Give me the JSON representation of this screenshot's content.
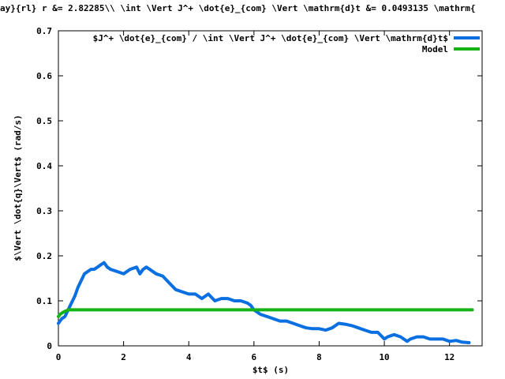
{
  "chart_data": {
    "type": "line",
    "title": "ay}{rl} r &= 2.82285\\\\ \\int \\Vert J^+ \\dot{e}_{com} \\Vert \\mathrm{d}t &=  0.0493135 \\mathrm{",
    "xlabel": "$t$ (s)",
    "ylabel": "$\\Vert \\dot{q}\\Vert$ (rad/s)",
    "xlim": [
      0,
      13
    ],
    "ylim": [
      0,
      0.7
    ],
    "x_ticks": [
      "0",
      "2",
      "4",
      "6",
      "8",
      "10",
      "12"
    ],
    "y_ticks": [
      "0",
      "0.1",
      "0.2",
      "0.3",
      "0.4",
      "0.5",
      "0.6",
      "0.7"
    ],
    "x_tick_values": [
      0,
      2,
      4,
      6,
      8,
      10,
      12
    ],
    "y_tick_values": [
      0,
      0.1,
      0.2,
      0.3,
      0.4,
      0.5,
      0.6,
      0.7
    ],
    "grid": false,
    "legend_position": "top-right",
    "series": [
      {
        "name": "$J^+ \\dot{e}_{com} / \\int \\Vert J^+ \\dot{e}_{com} \\Vert \\mathrm{d}t$",
        "color": "#0a6fe0",
        "x": [
          0,
          0.1,
          0.2,
          0.3,
          0.4,
          0.5,
          0.6,
          0.7,
          0.8,
          0.9,
          1.0,
          1.1,
          1.2,
          1.3,
          1.4,
          1.5,
          1.6,
          1.8,
          2.0,
          2.2,
          2.4,
          2.5,
          2.6,
          2.7,
          2.8,
          3.0,
          3.2,
          3.4,
          3.6,
          3.8,
          4.0,
          4.2,
          4.4,
          4.6,
          4.8,
          5.0,
          5.2,
          5.4,
          5.6,
          5.8,
          5.9,
          6.0,
          6.2,
          6.4,
          6.6,
          6.8,
          7.0,
          7.2,
          7.4,
          7.6,
          7.8,
          8.0,
          8.2,
          8.4,
          8.6,
          8.8,
          9.0,
          9.2,
          9.4,
          9.6,
          9.8,
          10.0,
          10.1,
          10.3,
          10.5,
          10.7,
          10.8,
          11.0,
          11.2,
          11.4,
          11.6,
          11.8,
          12.0,
          12.2,
          12.4,
          12.6
        ],
        "values": [
          0.05,
          0.06,
          0.065,
          0.08,
          0.095,
          0.11,
          0.13,
          0.145,
          0.16,
          0.165,
          0.17,
          0.17,
          0.175,
          0.18,
          0.185,
          0.175,
          0.17,
          0.165,
          0.16,
          0.17,
          0.175,
          0.16,
          0.17,
          0.175,
          0.17,
          0.16,
          0.155,
          0.14,
          0.125,
          0.12,
          0.115,
          0.115,
          0.105,
          0.115,
          0.1,
          0.105,
          0.105,
          0.1,
          0.1,
          0.095,
          0.09,
          0.08,
          0.07,
          0.065,
          0.06,
          0.055,
          0.055,
          0.05,
          0.045,
          0.04,
          0.038,
          0.038,
          0.035,
          0.04,
          0.05,
          0.048,
          0.045,
          0.04,
          0.035,
          0.03,
          0.03,
          0.015,
          0.02,
          0.025,
          0.02,
          0.01,
          0.015,
          0.02,
          0.02,
          0.015,
          0.015,
          0.015,
          0.01,
          0.012,
          0.008,
          0.007
        ]
      },
      {
        "name": "Model",
        "color": "#16b316",
        "x": [
          0,
          0.05,
          0.15,
          0.3,
          12.7
        ],
        "values": [
          0.065,
          0.07,
          0.075,
          0.08,
          0.08
        ]
      }
    ]
  }
}
